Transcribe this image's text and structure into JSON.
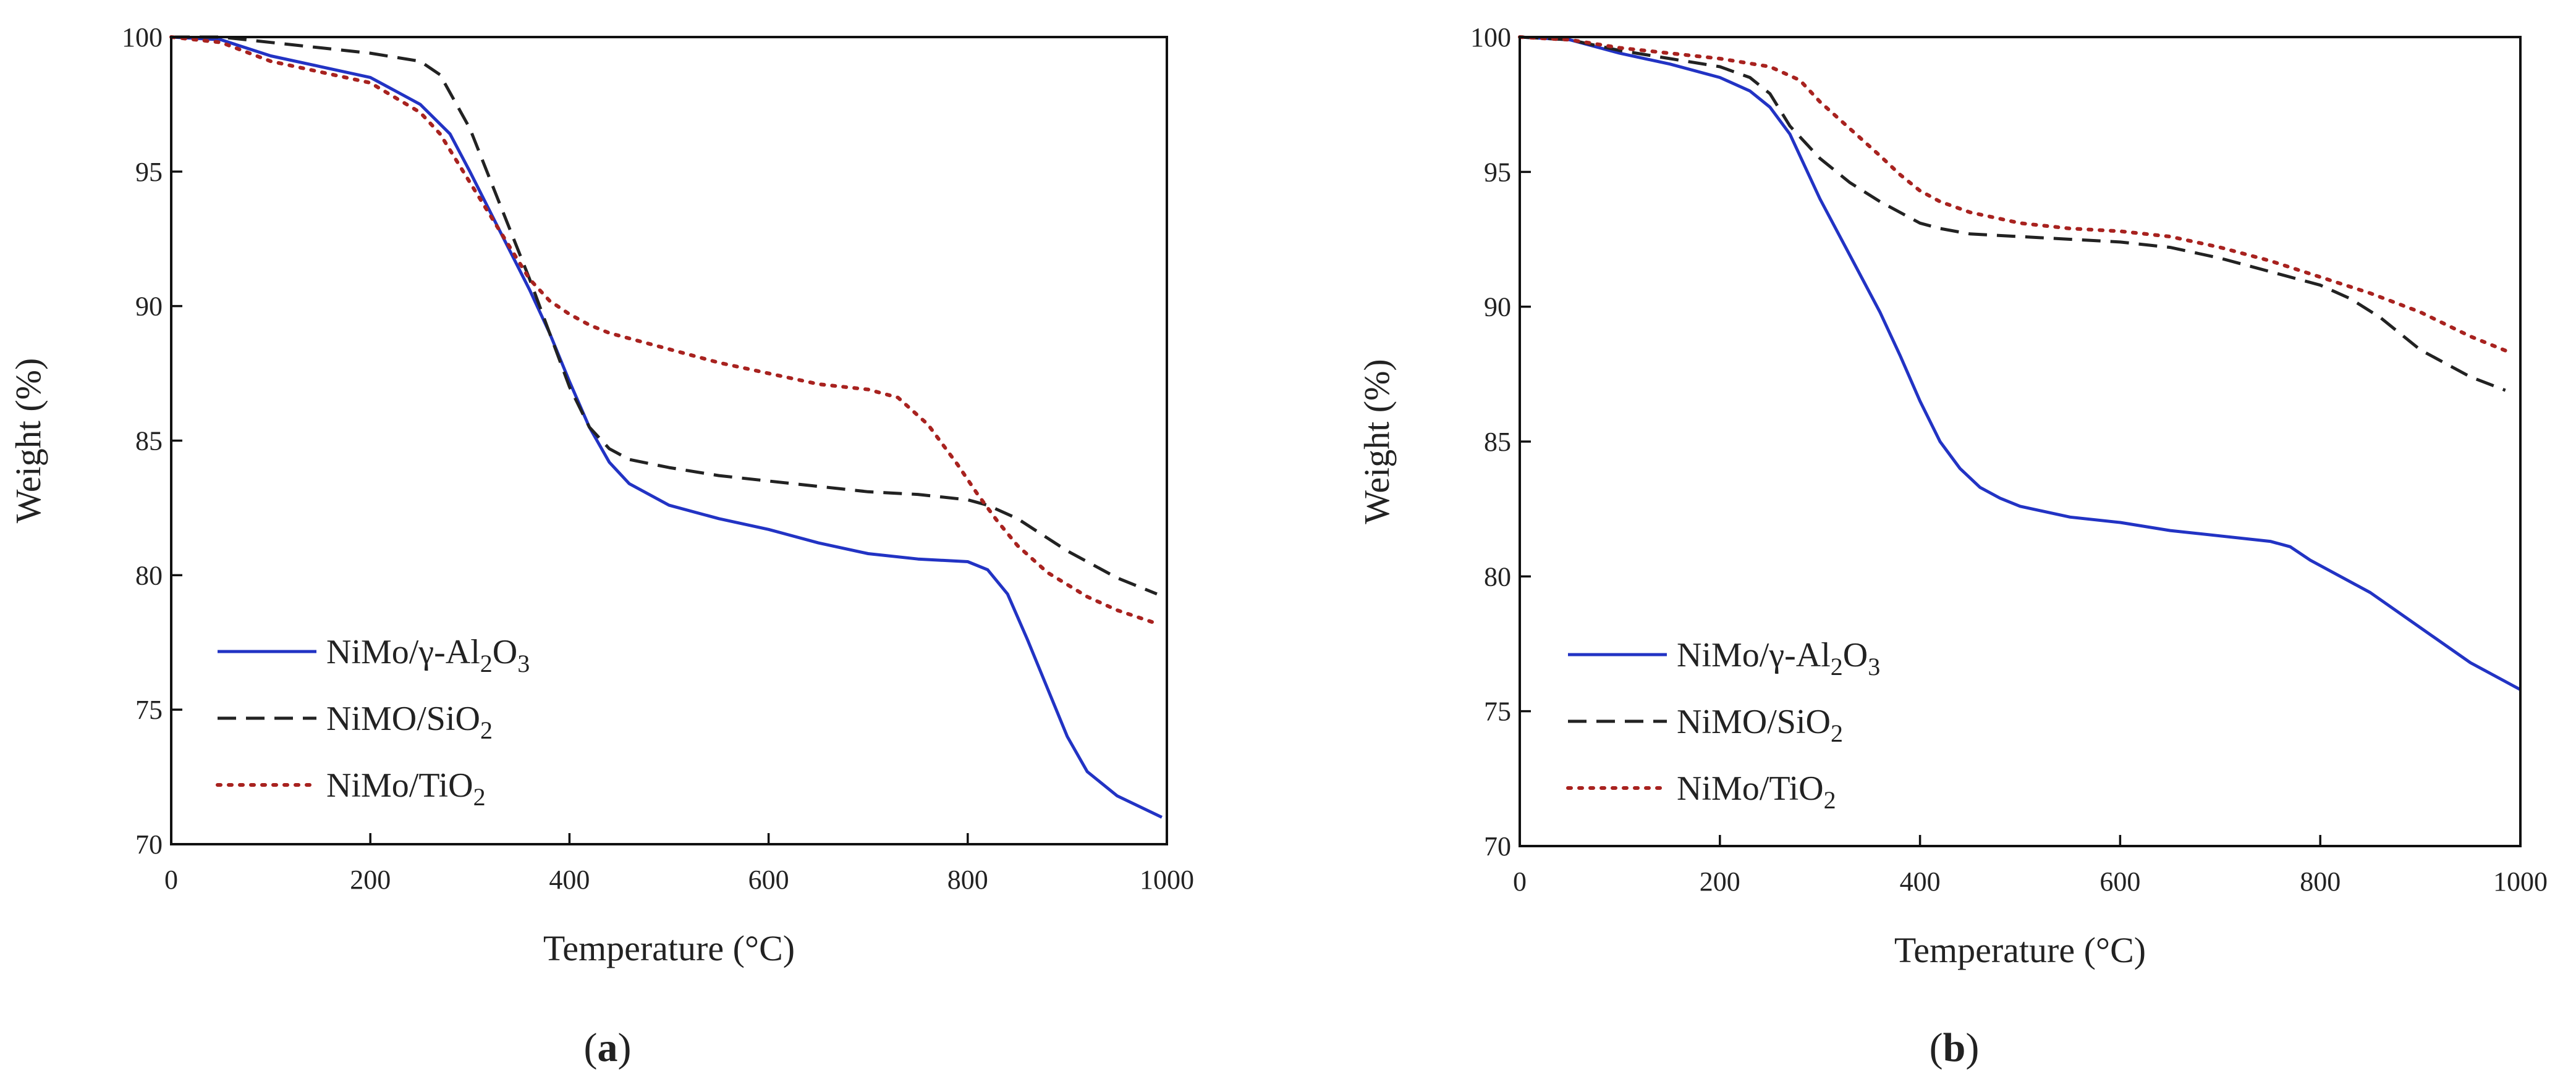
{
  "chart_data": [
    {
      "type": "line",
      "panel_label": {
        "open": "(",
        "letter": "a",
        "close": ")"
      },
      "xlabel": "Temperature (°C)",
      "ylabel": "Weight (%)",
      "xlim": [
        0,
        1000
      ],
      "ylim": [
        70,
        100
      ],
      "xticks": [
        0,
        200,
        400,
        600,
        800,
        1000
      ],
      "yticks": [
        70,
        75,
        80,
        85,
        90,
        95,
        100
      ],
      "legend_position": "bottom-left",
      "series": [
        {
          "name": "NiMo/γ-Al2O3",
          "legend": {
            "prefix": "NiMo/γ-Al",
            "sub1": "2",
            "mid": "O",
            "sub2": "3"
          },
          "color": "#2233c4",
          "style": "solid",
          "x": [
            0,
            50,
            100,
            150,
            200,
            250,
            280,
            300,
            330,
            360,
            380,
            400,
            420,
            440,
            460,
            500,
            550,
            600,
            650,
            700,
            750,
            800,
            820,
            840,
            860,
            880,
            900,
            920,
            950,
            995
          ],
          "y": [
            100,
            99.9,
            99.3,
            98.9,
            98.5,
            97.5,
            96.4,
            95.0,
            92.8,
            90.6,
            89.0,
            87.2,
            85.5,
            84.2,
            83.4,
            82.6,
            82.1,
            81.7,
            81.2,
            80.8,
            80.6,
            80.5,
            80.2,
            79.3,
            77.6,
            75.8,
            74.0,
            72.7,
            71.8,
            71.0
          ]
        },
        {
          "name": "NiMO/SiO2",
          "legend": {
            "prefix": "NiMO/SiO",
            "sub1": "2",
            "mid": "",
            "sub2": ""
          },
          "color": "#222222",
          "style": "dashed",
          "x": [
            0,
            50,
            100,
            150,
            200,
            250,
            270,
            300,
            330,
            360,
            380,
            400,
            420,
            440,
            460,
            500,
            550,
            600,
            650,
            700,
            750,
            800,
            820,
            850,
            900,
            950,
            990
          ],
          "y": [
            100,
            100,
            99.8,
            99.6,
            99.4,
            99.1,
            98.6,
            96.6,
            93.8,
            91.0,
            89.0,
            87.0,
            85.5,
            84.7,
            84.3,
            84.0,
            83.7,
            83.5,
            83.3,
            83.1,
            83.0,
            82.8,
            82.6,
            82.1,
            80.9,
            79.9,
            79.3
          ]
        },
        {
          "name": "NiMo/TiO2",
          "legend": {
            "prefix": "NiMo/TiO",
            "sub1": "2",
            "mid": "",
            "sub2": ""
          },
          "color": "#a8221f",
          "style": "dotted",
          "x": [
            0,
            50,
            100,
            150,
            200,
            250,
            270,
            300,
            330,
            360,
            380,
            400,
            420,
            440,
            500,
            550,
            600,
            650,
            700,
            730,
            760,
            790,
            810,
            830,
            850,
            880,
            920,
            950,
            990
          ],
          "y": [
            100,
            99.8,
            99.1,
            98.7,
            98.3,
            97.2,
            96.4,
            94.6,
            92.8,
            91.0,
            90.2,
            89.7,
            89.3,
            89.0,
            88.4,
            87.9,
            87.5,
            87.1,
            86.9,
            86.6,
            85.6,
            84.1,
            83.0,
            82.0,
            81.1,
            80.1,
            79.2,
            78.7,
            78.2
          ]
        }
      ]
    },
    {
      "type": "line",
      "panel_label": {
        "open": "(",
        "letter": "b",
        "close": ")"
      },
      "xlabel": "Temperature (°C)",
      "ylabel": "Weight (%)",
      "xlim": [
        0,
        1000
      ],
      "ylim": [
        70,
        100
      ],
      "xticks": [
        0,
        200,
        400,
        600,
        800,
        1000
      ],
      "yticks": [
        70,
        75,
        80,
        85,
        90,
        95,
        100
      ],
      "legend_position": "bottom-left",
      "series": [
        {
          "name": "NiMo/γ-Al2O3",
          "legend": {
            "prefix": "NiMo/γ-Al",
            "sub1": "2",
            "mid": "O",
            "sub2": "3"
          },
          "color": "#2233c4",
          "style": "solid",
          "x": [
            0,
            50,
            100,
            150,
            200,
            230,
            250,
            270,
            300,
            330,
            360,
            380,
            400,
            420,
            440,
            460,
            480,
            500,
            550,
            600,
            650,
            700,
            750,
            770,
            790,
            820,
            850,
            900,
            950,
            1000
          ],
          "y": [
            100,
            99.9,
            99.4,
            99.0,
            98.5,
            98.0,
            97.4,
            96.4,
            94.0,
            91.9,
            89.8,
            88.2,
            86.5,
            85.0,
            84.0,
            83.3,
            82.9,
            82.6,
            82.2,
            82.0,
            81.7,
            81.5,
            81.3,
            81.1,
            80.6,
            80.0,
            79.4,
            78.1,
            76.8,
            75.8
          ]
        },
        {
          "name": "NiMO/SiO2",
          "legend": {
            "prefix": "NiMO/SiO",
            "sub1": "2",
            "mid": "",
            "sub2": ""
          },
          "color": "#222222",
          "style": "dashed",
          "x": [
            0,
            50,
            100,
            150,
            200,
            230,
            250,
            270,
            300,
            330,
            360,
            400,
            420,
            450,
            500,
            550,
            600,
            650,
            700,
            750,
            800,
            830,
            860,
            900,
            950,
            985
          ],
          "y": [
            100,
            99.9,
            99.5,
            99.2,
            98.9,
            98.5,
            97.9,
            96.7,
            95.5,
            94.6,
            93.9,
            93.1,
            92.9,
            92.7,
            92.6,
            92.5,
            92.4,
            92.2,
            91.8,
            91.3,
            90.8,
            90.3,
            89.6,
            88.4,
            87.4,
            86.9
          ]
        },
        {
          "name": "NiMo/TiO2",
          "legend": {
            "prefix": "NiMo/TiO",
            "sub1": "2",
            "mid": "",
            "sub2": ""
          },
          "color": "#a8221f",
          "style": "dotted",
          "x": [
            0,
            50,
            100,
            150,
            200,
            250,
            280,
            300,
            330,
            360,
            380,
            400,
            420,
            450,
            500,
            550,
            600,
            650,
            700,
            750,
            800,
            850,
            900,
            950,
            990
          ],
          "y": [
            100,
            99.9,
            99.6,
            99.4,
            99.2,
            98.9,
            98.4,
            97.6,
            96.6,
            95.6,
            94.9,
            94.3,
            93.9,
            93.5,
            93.1,
            92.9,
            92.8,
            92.6,
            92.2,
            91.7,
            91.1,
            90.5,
            89.8,
            88.9,
            88.3
          ]
        }
      ]
    }
  ]
}
